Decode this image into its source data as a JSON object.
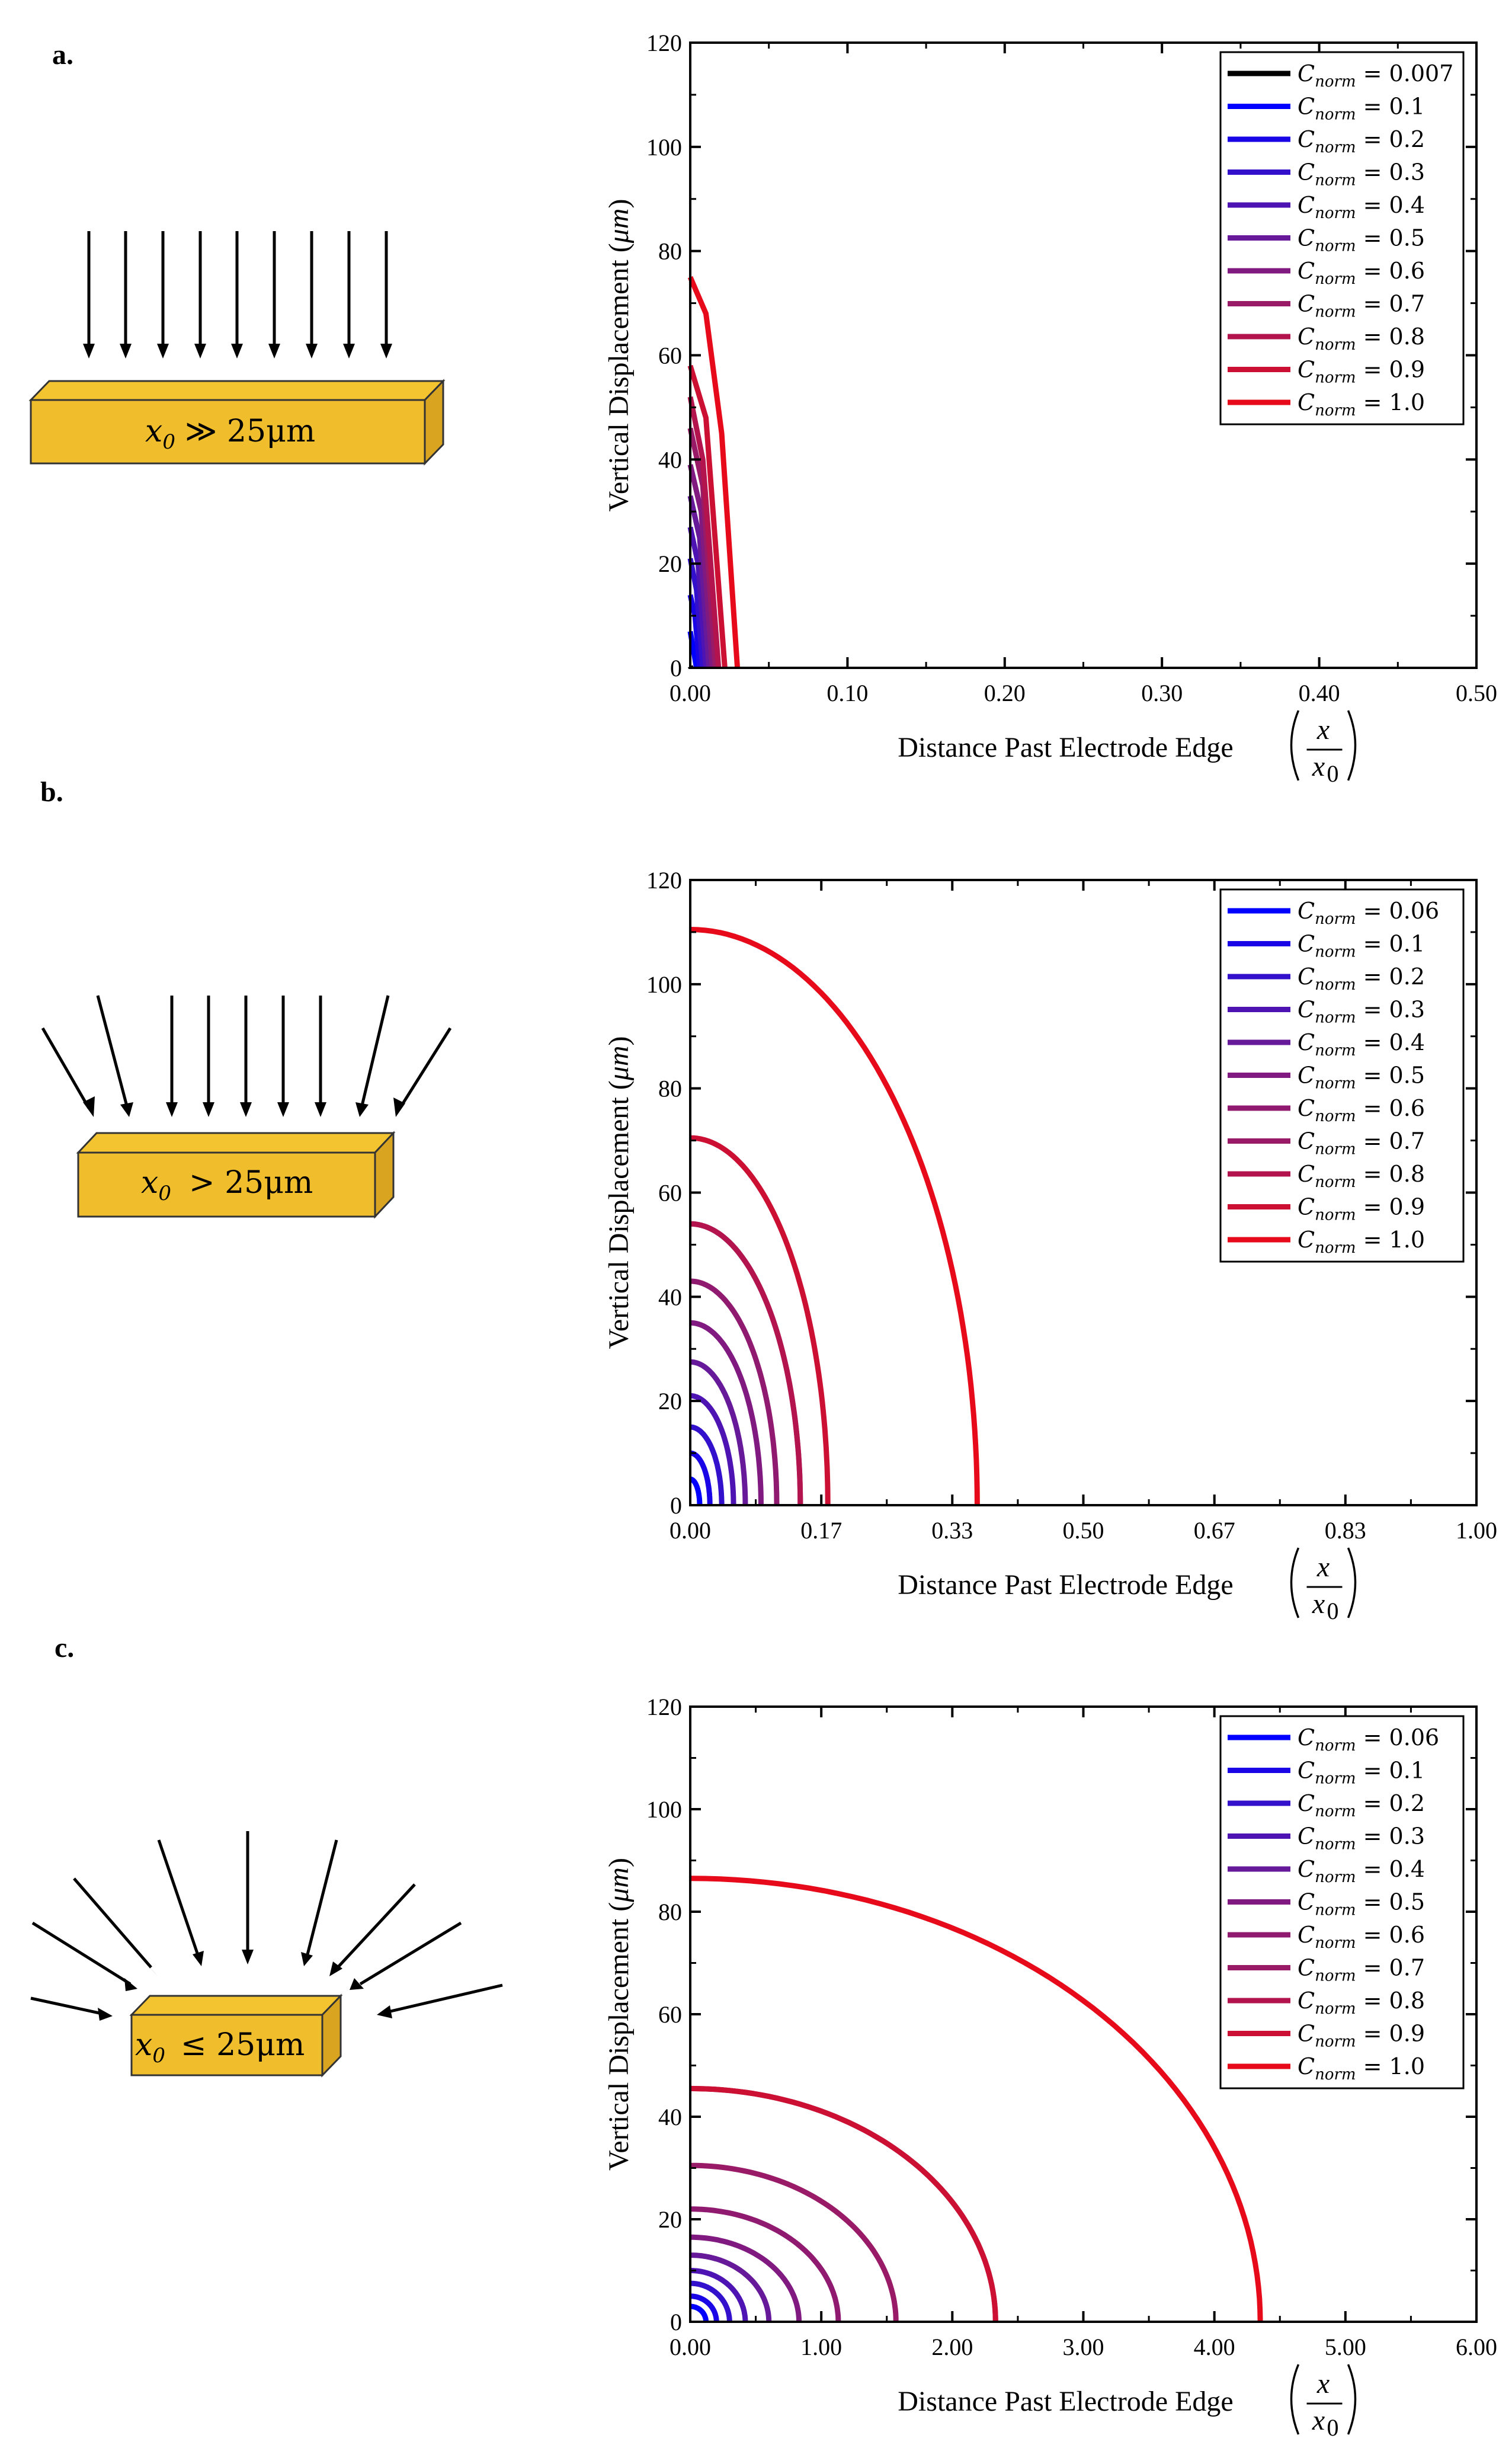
{
  "panel_labels": [
    "a.",
    "b.",
    "c."
  ],
  "diagrams": [
    {
      "label_var": "x",
      "label_sub": "0",
      "label_rel": "≫ 25μm"
    },
    {
      "label_var": "x",
      "label_sub": "0",
      "label_rel": "> 25μm"
    },
    {
      "label_var": "x",
      "label_sub": "0",
      "label_rel": "≤ 25μm"
    }
  ],
  "chart_data": [
    {
      "type": "line",
      "xlabel": "Distance Past Electrode Edge",
      "xlabel_frac_num": "x",
      "xlabel_frac_den": "x",
      "xlabel_frac_den_sub": "0",
      "ylabel": "Vertical Displacement",
      "ylabel_unit": "μm",
      "xlim": [
        0,
        0.5
      ],
      "ylim": [
        0,
        120
      ],
      "xticks": [
        "0.00",
        "0.10",
        "0.20",
        "0.30",
        "0.40",
        "0.50"
      ],
      "xtick_values": [
        0,
        0.1,
        0.2,
        0.3,
        0.4,
        0.5
      ],
      "yticks": [
        "0",
        "20",
        "40",
        "60",
        "80",
        "100",
        "120"
      ],
      "ytick_values": [
        0,
        20,
        40,
        60,
        80,
        100,
        120
      ],
      "legend_position": "top-right",
      "series": [
        {
          "name": "C_norm = 0.007",
          "sub": "norm",
          "value": "0.007",
          "color": "#000000",
          "points": [
            [
              0.0,
              0.3
            ],
            [
              0.0005,
              0
            ]
          ]
        },
        {
          "name": "C_norm = 0.1",
          "sub": "norm",
          "value": "0.1",
          "color": "#0000ff",
          "points": [
            [
              0.0,
              7
            ],
            [
              0.004,
              0
            ]
          ]
        },
        {
          "name": "C_norm = 0.2",
          "sub": "norm",
          "value": "0.2",
          "color": "#1a05e6",
          "points": [
            [
              0.0,
              14
            ],
            [
              0.003,
              10
            ],
            [
              0.006,
              0
            ]
          ]
        },
        {
          "name": "C_norm = 0.3",
          "sub": "norm",
          "value": "0.3",
          "color": "#3310cc",
          "points": [
            [
              0.0,
              21
            ],
            [
              0.004,
              15
            ],
            [
              0.008,
              0
            ]
          ]
        },
        {
          "name": "C_norm = 0.4",
          "sub": "norm",
          "value": "0.4",
          "color": "#4d14b3",
          "points": [
            [
              0.0,
              27
            ],
            [
              0.005,
              20
            ],
            [
              0.01,
              0
            ]
          ]
        },
        {
          "name": "C_norm = 0.5",
          "sub": "norm",
          "value": "0.5",
          "color": "#661a99",
          "points": [
            [
              0.0,
              33
            ],
            [
              0.006,
              25
            ],
            [
              0.012,
              0
            ]
          ]
        },
        {
          "name": "C_norm = 0.6",
          "sub": "norm",
          "value": "0.6",
          "color": "#801a80",
          "points": [
            [
              0.0,
              39
            ],
            [
              0.007,
              30
            ],
            [
              0.014,
              0
            ]
          ]
        },
        {
          "name": "C_norm = 0.7",
          "sub": "norm",
          "value": "0.7",
          "color": "#991a66",
          "points": [
            [
              0.0,
              46
            ],
            [
              0.008,
              35
            ],
            [
              0.016,
              0
            ]
          ]
        },
        {
          "name": "C_norm = 0.8",
          "sub": "norm",
          "value": "0.8",
          "color": "#b3144d",
          "points": [
            [
              0.0,
              52
            ],
            [
              0.008,
              40
            ],
            [
              0.018,
              0
            ]
          ]
        },
        {
          "name": "C_norm = 0.9",
          "sub": "norm",
          "value": "0.9",
          "color": "#cc1033",
          "points": [
            [
              0.0,
              58
            ],
            [
              0.01,
              48
            ],
            [
              0.022,
              0
            ]
          ]
        },
        {
          "name": "C_norm = 1.0",
          "sub": "norm",
          "value": "1.0",
          "color": "#e60a1a",
          "points": [
            [
              0.0,
              75
            ],
            [
              0.01,
              68
            ],
            [
              0.02,
              45
            ],
            [
              0.03,
              0
            ]
          ]
        }
      ]
    },
    {
      "type": "line",
      "xlabel": "Distance Past Electrode Edge",
      "xlabel_frac_num": "x",
      "xlabel_frac_den": "x",
      "xlabel_frac_den_sub": "0",
      "ylabel": "Vertical Displacement",
      "ylabel_unit": "μm",
      "xlim": [
        0,
        1.0
      ],
      "ylim": [
        0,
        120
      ],
      "xticks": [
        "0.00",
        "0.17",
        "0.33",
        "0.50",
        "0.67",
        "0.83",
        "1.00"
      ],
      "xtick_values": [
        0,
        0.1667,
        0.3333,
        0.5,
        0.6667,
        0.8333,
        1.0
      ],
      "yticks": [
        "0",
        "20",
        "40",
        "60",
        "80",
        "100",
        "120"
      ],
      "ytick_values": [
        0,
        20,
        40,
        60,
        80,
        100,
        120
      ],
      "legend_position": "top-right",
      "series": [
        {
          "name": "C_norm = 0.06",
          "sub": "norm",
          "value": "0.06",
          "color": "#0000ff",
          "ry": 5,
          "rx": 0.012
        },
        {
          "name": "C_norm = 0.1",
          "sub": "norm",
          "value": "0.1",
          "color": "#1a05e6",
          "ry": 10,
          "rx": 0.025
        },
        {
          "name": "C_norm = 0.2",
          "sub": "norm",
          "value": "0.2",
          "color": "#3310cc",
          "ry": 15,
          "rx": 0.04
        },
        {
          "name": "C_norm = 0.3",
          "sub": "norm",
          "value": "0.3",
          "color": "#4d14b3",
          "ry": 21,
          "rx": 0.055
        },
        {
          "name": "C_norm = 0.4",
          "sub": "norm",
          "value": "0.4",
          "color": "#661a99",
          "ry": 27.5,
          "rx": 0.07
        },
        {
          "name": "C_norm = 0.5",
          "sub": "norm",
          "value": "0.5",
          "color": "#801a80",
          "ry": 35,
          "rx": 0.09
        },
        {
          "name": "C_norm = 0.6",
          "sub": "norm",
          "value": "0.6",
          "color": "#8f1a70",
          "ry": 43,
          "rx": 0.11
        },
        {
          "name": "C_norm = 0.7",
          "sub": "norm",
          "value": "0.7",
          "color": "#991a66",
          "ry": 54,
          "rx": 0.14
        },
        {
          "name": "C_norm = 0.8",
          "sub": "norm",
          "value": "0.8",
          "color": "#b3144d",
          "ry": 54,
          "rx": 0.14
        },
        {
          "name": "C_norm = 0.9",
          "sub": "norm",
          "value": "0.9",
          "color": "#cc1033",
          "ry": 70.5,
          "rx": 0.175
        },
        {
          "name": "C_norm = 1.0",
          "sub": "norm",
          "value": "1.0",
          "color": "#e60a1a",
          "ry": 110.5,
          "rx": 0.365
        }
      ]
    },
    {
      "type": "line",
      "xlabel": "Distance Past Electrode Edge",
      "xlabel_frac_num": "x",
      "xlabel_frac_den": "x",
      "xlabel_frac_den_sub": "0",
      "ylabel": "Vertical Displacement",
      "ylabel_unit": "μm",
      "xlim": [
        0,
        6.0
      ],
      "ylim": [
        0,
        120
      ],
      "xticks": [
        "0.00",
        "1.00",
        "2.00",
        "3.00",
        "4.00",
        "5.00",
        "6.00"
      ],
      "xtick_values": [
        0,
        1,
        2,
        3,
        4,
        5,
        6
      ],
      "yticks": [
        "0",
        "20",
        "40",
        "60",
        "80",
        "100",
        "120"
      ],
      "ytick_values": [
        0,
        20,
        40,
        60,
        80,
        100,
        120
      ],
      "legend_position": "top-right",
      "series": [
        {
          "name": "C_norm = 0.06",
          "sub": "norm",
          "value": "0.06",
          "color": "#0000ff",
          "ry": 3,
          "rx": 0.12
        },
        {
          "name": "C_norm = 0.1",
          "sub": "norm",
          "value": "0.1",
          "color": "#1a05e6",
          "ry": 5,
          "rx": 0.2
        },
        {
          "name": "C_norm = 0.2",
          "sub": "norm",
          "value": "0.2",
          "color": "#3310cc",
          "ry": 7.5,
          "rx": 0.3
        },
        {
          "name": "C_norm = 0.3",
          "sub": "norm",
          "value": "0.3",
          "color": "#4d14b3",
          "ry": 10,
          "rx": 0.42
        },
        {
          "name": "C_norm = 0.4",
          "sub": "norm",
          "value": "0.4",
          "color": "#661a99",
          "ry": 13,
          "rx": 0.6
        },
        {
          "name": "C_norm = 0.5",
          "sub": "norm",
          "value": "0.5",
          "color": "#801a80",
          "ry": 16.5,
          "rx": 0.83
        },
        {
          "name": "C_norm = 0.6",
          "sub": "norm",
          "value": "0.6",
          "color": "#8f1a70",
          "ry": 22,
          "rx": 1.13
        },
        {
          "name": "C_norm = 0.7",
          "sub": "norm",
          "value": "0.7",
          "color": "#991a66",
          "ry": 30.5,
          "rx": 1.57
        },
        {
          "name": "C_norm = 0.8",
          "sub": "norm",
          "value": "0.8",
          "color": "#b3144d",
          "ry": 45.5,
          "rx": 2.33
        },
        {
          "name": "C_norm = 0.9",
          "sub": "norm",
          "value": "0.9",
          "color": "#cc1033",
          "ry": 45.5,
          "rx": 2.33
        },
        {
          "name": "C_norm = 1.0",
          "sub": "norm",
          "value": "1.0",
          "color": "#e60a1a",
          "ry": 86.5,
          "rx": 4.35
        }
      ]
    }
  ]
}
